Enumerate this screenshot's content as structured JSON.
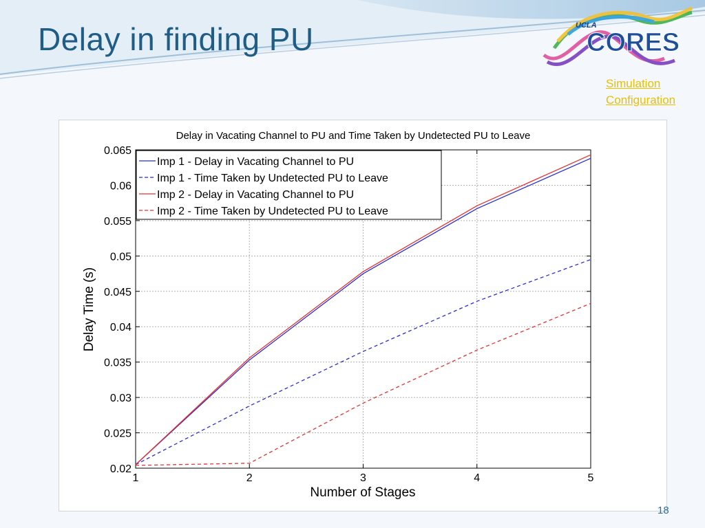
{
  "slide": {
    "title": "Delay in finding PU",
    "link_text_line1": "Simulation",
    "link_text_line2": "Configuration",
    "page_number": "18",
    "logo_small": "UCLA",
    "logo_main": "CORES"
  },
  "colors": {
    "title": "#1f5d86",
    "link": "#e8c000",
    "imp1": "#2b2bd6",
    "imp2": "#e83030"
  },
  "chart_data": {
    "type": "line",
    "title": "Delay in Vacating Channel to PU and Time Taken by Undetected PU to Leave",
    "xlabel": "Number of Stages",
    "ylabel": "Delay Time (s)",
    "x": [
      1,
      2,
      3,
      4,
      5
    ],
    "xlim": [
      1,
      5
    ],
    "ylim": [
      0.02,
      0.065
    ],
    "xticks": [
      "1",
      "2",
      "3",
      "4",
      "5"
    ],
    "yticks": [
      "0.02",
      "0.025",
      "0.03",
      "0.035",
      "0.04",
      "0.045",
      "0.05",
      "0.055",
      "0.06",
      "0.065"
    ],
    "grid": true,
    "legend_position": "top-left",
    "series": [
      {
        "name": "Imp 1 - Delay in Vacating Channel to PU",
        "values": [
          0.0205,
          0.0353,
          0.0475,
          0.0567,
          0.0638
        ],
        "style": "solid",
        "color": "#2b2bd6"
      },
      {
        "name": "Imp 1 - Time Taken by Undetected PU to Leave",
        "values": [
          0.0205,
          0.0288,
          0.0365,
          0.0436,
          0.0495
        ],
        "style": "dashed",
        "color": "#2b2bd6"
      },
      {
        "name": "Imp 2 - Delay in Vacating Channel to PU",
        "values": [
          0.0205,
          0.0356,
          0.0478,
          0.0571,
          0.0643
        ],
        "style": "solid",
        "color": "#e83030"
      },
      {
        "name": "Imp 2 - Time Taken by Undetected PU to Leave",
        "values": [
          0.0204,
          0.0207,
          0.0292,
          0.0367,
          0.0433
        ],
        "style": "dashed",
        "color": "#e83030"
      }
    ]
  }
}
